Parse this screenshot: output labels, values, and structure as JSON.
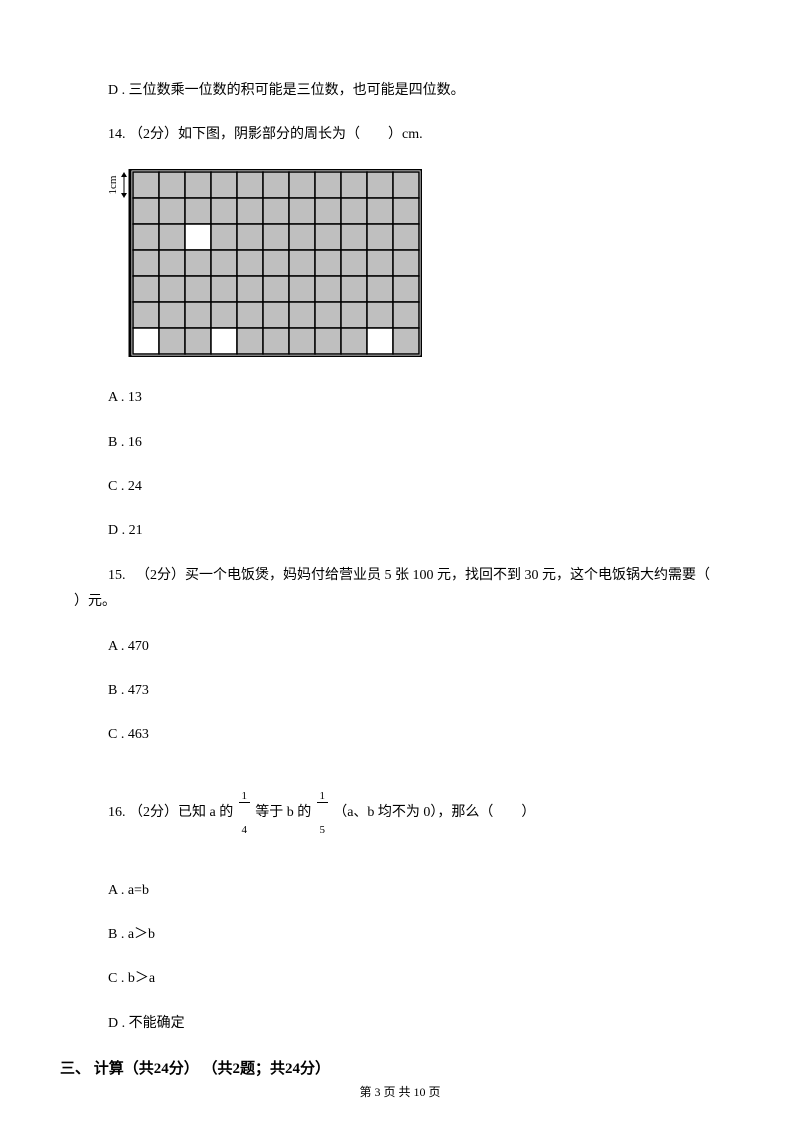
{
  "line_d_option": "D . 三位数乘一位数的积可能是三位数，也可能是四位数。",
  "q14": {
    "stem": "14.  （2分）如下图，阴影部分的周长为（　　）cm.",
    "options": {
      "a": "A . 13",
      "b": "B . 16",
      "c": "C . 24",
      "d": "D . 21"
    },
    "grid": {
      "cols": 11,
      "rows": 7,
      "cell_size": 26,
      "border_color": "#000000",
      "bg_color": "#ffffff",
      "shade_color": "#bfbfbf",
      "label_text": "1cm",
      "shaded_cells": [
        [
          0,
          0
        ],
        [
          0,
          1
        ],
        [
          0,
          2
        ],
        [
          0,
          3
        ],
        [
          0,
          4
        ],
        [
          0,
          5
        ],
        [
          0,
          6
        ],
        [
          0,
          7
        ],
        [
          0,
          8
        ],
        [
          0,
          9
        ],
        [
          0,
          10
        ],
        [
          1,
          0
        ],
        [
          1,
          1
        ],
        [
          1,
          2
        ],
        [
          1,
          3
        ],
        [
          1,
          4
        ],
        [
          1,
          5
        ],
        [
          1,
          6
        ],
        [
          1,
          7
        ],
        [
          1,
          8
        ],
        [
          1,
          9
        ],
        [
          1,
          10
        ],
        [
          2,
          0
        ],
        [
          2,
          1
        ],
        [
          2,
          3
        ],
        [
          2,
          4
        ],
        [
          2,
          5
        ],
        [
          2,
          6
        ],
        [
          2,
          7
        ],
        [
          2,
          8
        ],
        [
          2,
          9
        ],
        [
          2,
          10
        ],
        [
          3,
          0
        ],
        [
          3,
          1
        ],
        [
          3,
          2
        ],
        [
          3,
          3
        ],
        [
          3,
          4
        ],
        [
          3,
          5
        ],
        [
          3,
          6
        ],
        [
          3,
          7
        ],
        [
          3,
          8
        ],
        [
          3,
          9
        ],
        [
          3,
          10
        ],
        [
          4,
          0
        ],
        [
          4,
          1
        ],
        [
          4,
          2
        ],
        [
          4,
          3
        ],
        [
          4,
          4
        ],
        [
          4,
          5
        ],
        [
          4,
          6
        ],
        [
          4,
          7
        ],
        [
          4,
          8
        ],
        [
          4,
          9
        ],
        [
          4,
          10
        ],
        [
          5,
          0
        ],
        [
          5,
          1
        ],
        [
          5,
          2
        ],
        [
          5,
          3
        ],
        [
          5,
          4
        ],
        [
          5,
          5
        ],
        [
          5,
          6
        ],
        [
          5,
          7
        ],
        [
          5,
          8
        ],
        [
          5,
          9
        ],
        [
          5,
          10
        ],
        [
          6,
          1
        ],
        [
          6,
          2
        ],
        [
          6,
          4
        ],
        [
          6,
          5
        ],
        [
          6,
          6
        ],
        [
          6,
          7
        ],
        [
          6,
          8
        ],
        [
          6,
          10
        ]
      ]
    }
  },
  "q15": {
    "stem_part1": "15. 　（2分）买一个电饭煲，妈妈付给营业员 5 张 100 元，找回不到 30 元，这个电饭锅大约需要（　",
    "stem_part2": "　）元。",
    "options": {
      "a": "A . 470",
      "b": "B . 473",
      "c": "C . 463"
    }
  },
  "q16": {
    "stem_p1": "16. （2分）已知 a 的 ",
    "frac1": {
      "num": "1",
      "den": "4"
    },
    "stem_p2": " 等于 b 的 ",
    "frac2": {
      "num": "1",
      "den": "5"
    },
    "stem_p3": " （a、b 均不为 0），那么（　　）",
    "options": {
      "a": "A . a=b",
      "b": "B . a＞b",
      "c": "C . b＞a",
      "d": "D . 不能确定"
    }
  },
  "section3": "三、 计算（共24分） （共2题；共24分）",
  "footer": "第 3 页 共 10 页"
}
